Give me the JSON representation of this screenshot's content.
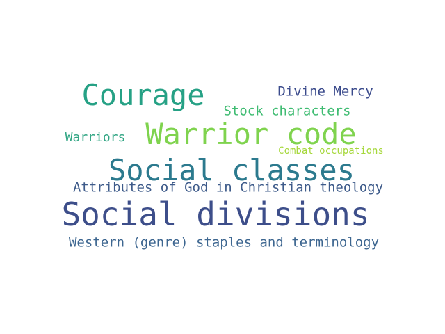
{
  "words": [
    {
      "key": "courage",
      "text": "Courage",
      "color": "#26a185"
    },
    {
      "key": "divine_mercy",
      "text": "Divine Mercy",
      "color": "#3b4b8c"
    },
    {
      "key": "stock",
      "text": "Stock characters",
      "color": "#3fbc72"
    },
    {
      "key": "warriors",
      "text": "Warriors",
      "color": "#30a583"
    },
    {
      "key": "warrior_code",
      "text": "Warrior code",
      "color": "#7fd34e"
    },
    {
      "key": "combat",
      "text": "Combat occupations",
      "color": "#a6d83b"
    },
    {
      "key": "social_classes",
      "text": "Social classes",
      "color": "#2c7a8e"
    },
    {
      "key": "attributes",
      "text": "Attributes of God in Christian theology",
      "color": "#3e5b8a"
    },
    {
      "key": "social_divisions",
      "text": "Social divisions",
      "color": "#3d4e8a"
    },
    {
      "key": "western",
      "text": "Western (genre) staples and terminology",
      "color": "#3d6690"
    }
  ]
}
